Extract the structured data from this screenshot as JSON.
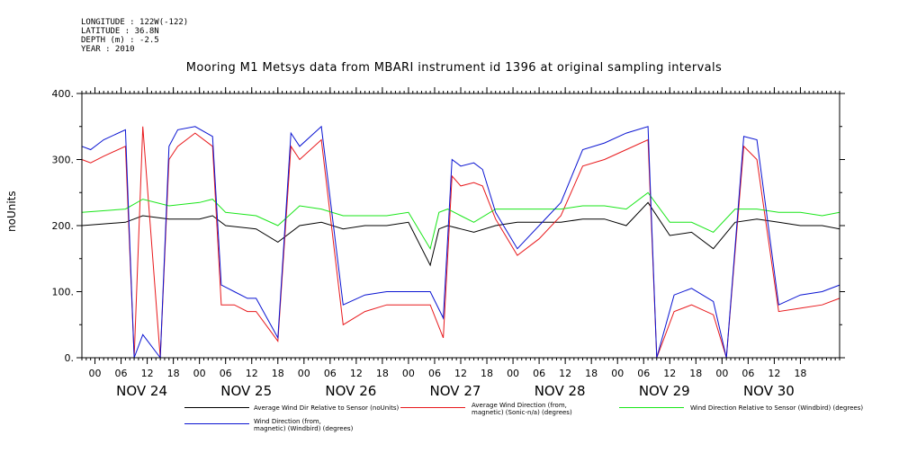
{
  "meta": {
    "lines": [
      "LONGITUDE : 122W(-122)",
      "LATITUDE : 36.8N",
      "DEPTH (m) : -2.5",
      "YEAR : 2010"
    ]
  },
  "colors": {
    "black": "#000000",
    "red": "#e8191c",
    "green": "#19e619",
    "blue": "#0a14d2"
  },
  "chart_data": {
    "type": "line",
    "title": "Mooring M1 Metsys data from MBARI instrument id 1396 at original sampling intervals",
    "xlabel": "",
    "ylabel": "noUnits",
    "ylim": [
      0,
      400
    ],
    "xlim_hours": [
      0,
      174
    ],
    "x_unit": "hours from NOV 23 21:00, 2010",
    "y_ticks": [
      0,
      100,
      200,
      300,
      400
    ],
    "hour_ticks": [
      "00",
      "06",
      "12",
      "18",
      "00",
      "06",
      "12",
      "18",
      "00",
      "06",
      "12",
      "18",
      "00",
      "06",
      "12",
      "18",
      "00",
      "06",
      "12",
      "18",
      "00",
      "06",
      "12",
      "18",
      "00",
      "06",
      "12",
      "18"
    ],
    "day_labels": [
      "NOV 24",
      "NOV 25",
      "NOV 26",
      "NOV 27",
      "NOV 28",
      "NOV 29",
      "NOV 30"
    ],
    "grid": false,
    "series": [
      {
        "name": "Average Wind Dir Relative to Sensor (noUnits)",
        "color": "#000000",
        "x": [
          0,
          10,
          14,
          20,
          27,
          30,
          33,
          40,
          45,
          50,
          55,
          60,
          65,
          70,
          75,
          80,
          82,
          84,
          87,
          90,
          95,
          100,
          105,
          110,
          115,
          120,
          125,
          130,
          135,
          140,
          145,
          150,
          155,
          160,
          165,
          170,
          174
        ],
        "y": [
          200,
          205,
          215,
          210,
          210,
          215,
          200,
          195,
          175,
          200,
          205,
          195,
          200,
          200,
          205,
          140,
          195,
          200,
          195,
          190,
          200,
          205,
          205,
          205,
          210,
          210,
          200,
          235,
          185,
          190,
          165,
          205,
          210,
          205,
          200,
          200,
          195
        ]
      },
      {
        "name": "Average Wind Direction (from, magnetic) (Sonic-n/a) (degrees)",
        "color": "#e8191c",
        "x": [
          0,
          2,
          5,
          10,
          12,
          14,
          18,
          20,
          22,
          26,
          30,
          32,
          35,
          38,
          40,
          45,
          48,
          50,
          55,
          60,
          65,
          70,
          75,
          80,
          83,
          85,
          87,
          90,
          92,
          95,
          100,
          105,
          110,
          115,
          120,
          125,
          130,
          132,
          136,
          140,
          145,
          148,
          152,
          155,
          160,
          165,
          170,
          174
        ],
        "y": [
          300,
          295,
          305,
          320,
          0,
          350,
          0,
          300,
          320,
          340,
          320,
          80,
          80,
          70,
          70,
          25,
          320,
          300,
          330,
          50,
          70,
          80,
          80,
          80,
          30,
          275,
          260,
          265,
          260,
          210,
          155,
          180,
          215,
          290,
          300,
          315,
          330,
          0,
          70,
          80,
          65,
          0,
          320,
          300,
          70,
          75,
          80,
          90
        ],
        "break_after": [
          3,
          4,
          5,
          6,
          10,
          14,
          17,
          18,
          24,
          25,
          30,
          31,
          34,
          36,
          38
        ]
      },
      {
        "name": "Wind Direction Relative to Sensor (Windbird) (degrees)",
        "color": "#19e619",
        "x": [
          0,
          10,
          14,
          20,
          27,
          30,
          33,
          40,
          45,
          50,
          55,
          60,
          65,
          70,
          75,
          80,
          82,
          84,
          87,
          90,
          95,
          100,
          105,
          110,
          115,
          120,
          125,
          130,
          135,
          140,
          145,
          150,
          155,
          160,
          165,
          170,
          174
        ],
        "y": [
          220,
          225,
          240,
          230,
          235,
          240,
          220,
          215,
          200,
          230,
          225,
          215,
          215,
          215,
          220,
          165,
          220,
          225,
          215,
          205,
          225,
          225,
          225,
          225,
          230,
          230,
          225,
          250,
          205,
          205,
          190,
          225,
          225,
          220,
          220,
          215,
          220
        ]
      },
      {
        "name": "Wind Direction (from, magnetic) (Windbird) (degrees)",
        "color": "#0a14d2",
        "x": [
          0,
          2,
          5,
          10,
          12,
          14,
          18,
          20,
          22,
          26,
          30,
          32,
          35,
          38,
          40,
          45,
          48,
          50,
          55,
          60,
          65,
          70,
          75,
          80,
          83,
          85,
          87,
          90,
          92,
          95,
          100,
          105,
          110,
          115,
          120,
          125,
          130,
          132,
          136,
          140,
          145,
          148,
          152,
          155,
          160,
          165,
          170,
          174
        ],
        "y": [
          320,
          315,
          330,
          345,
          0,
          35,
          0,
          320,
          345,
          350,
          335,
          110,
          100,
          90,
          90,
          30,
          340,
          320,
          350,
          80,
          95,
          100,
          100,
          100,
          60,
          300,
          290,
          295,
          285,
          220,
          165,
          200,
          235,
          315,
          325,
          340,
          350,
          0,
          95,
          105,
          85,
          0,
          335,
          330,
          80,
          95,
          100,
          110
        ],
        "break_after": [
          3,
          4,
          5,
          6,
          10,
          14,
          17,
          18,
          24,
          25,
          30,
          31,
          34,
          36,
          38
        ]
      }
    ]
  },
  "legend": {
    "black": "Average Wind Dir Relative to Sensor (noUnits)",
    "red": "Average Wind Direction (from,\nmagnetic) (Sonic-n/a) (degrees)",
    "green": "Wind Direction Relative to Sensor (Windbird) (degrees)",
    "blue": "Wind Direction (from,\nmagnetic) (Windbird) (degrees)"
  }
}
